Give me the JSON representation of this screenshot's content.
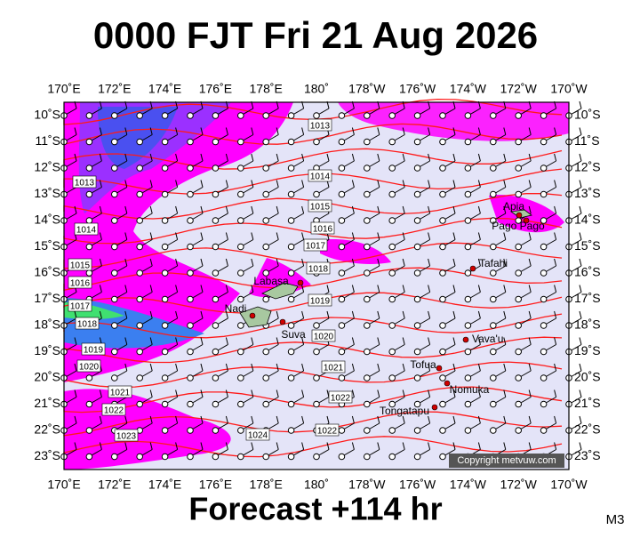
{
  "title": "0000 FJT Fri 21 Aug 2026",
  "footer": "Forecast +114 hr",
  "corner_label": "M3",
  "copyright": "Copyright metvuw.com",
  "lon_labels": [
    "170˚E",
    "172˚E",
    "174˚E",
    "176˚E",
    "178˚E",
    "180˚",
    "178˚W",
    "176˚W",
    "174˚W",
    "172˚W",
    "170˚W"
  ],
  "lat_labels": [
    "10˚S",
    "11˚S",
    "12˚S",
    "13˚S",
    "14˚S",
    "15˚S",
    "16˚S",
    "17˚S",
    "18˚S",
    "19˚S",
    "20˚S",
    "21˚S",
    "22˚S",
    "23˚S"
  ],
  "isobar_labels": [
    "1013",
    "1013",
    "1014",
    "1014",
    "1015",
    "1015",
    "1016",
    "1016",
    "1017",
    "1017",
    "1018",
    "1018",
    "1019",
    "1019",
    "1020",
    "1020",
    "1021",
    "1021",
    "1022",
    "1022",
    "1023",
    "1024",
    "1022"
  ],
  "places": [
    "Apia",
    "Pago Pago",
    "Tafahi",
    "Labasa",
    "Nadi",
    "Suva",
    "Vava'u",
    "Tofua",
    "Nomuka",
    "Tongatapu"
  ]
}
